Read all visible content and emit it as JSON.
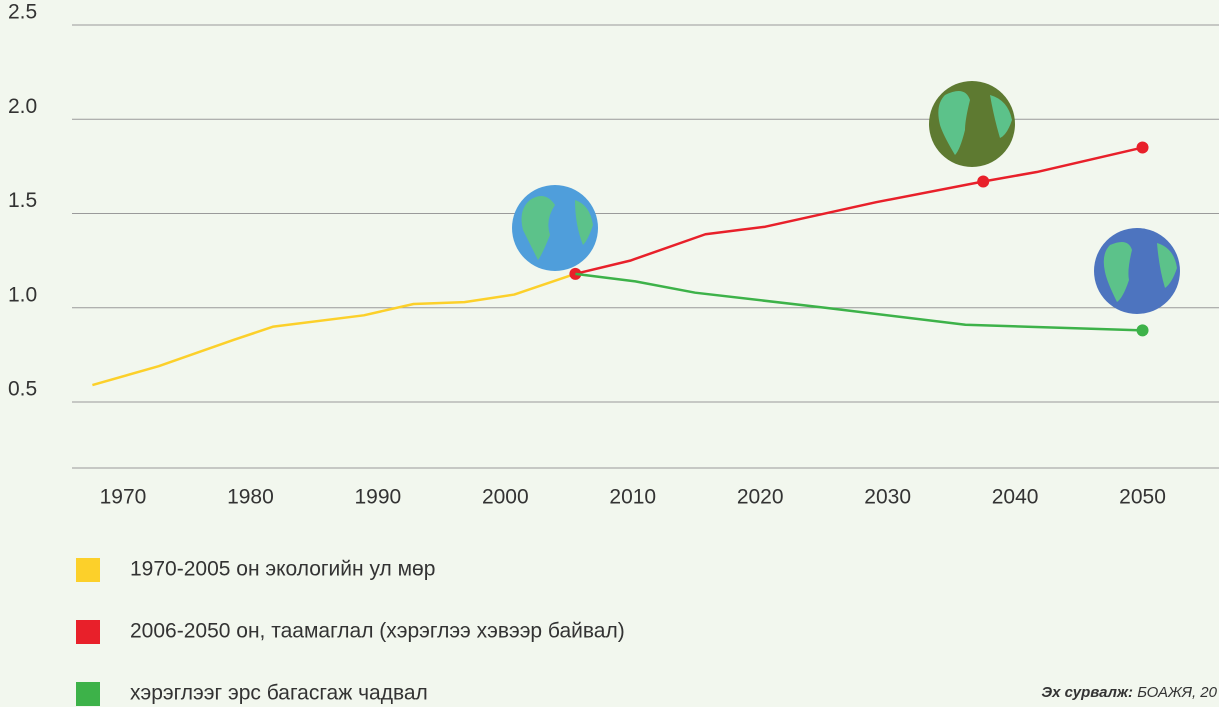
{
  "chart_data": {
    "type": "line",
    "xlim": [
      1966,
      2056
    ],
    "xticks": [
      1970,
      1980,
      1990,
      2000,
      2010,
      2020,
      2030,
      2040,
      2050
    ],
    "ylim": [
      0.15,
      2.5
    ],
    "yticks": [
      0.5,
      {
        "value": 1,
        "label": "1.0"
      },
      1.5,
      {
        "value": 2,
        "label": "2.0"
      },
      2.5
    ],
    "grid": true,
    "series": [
      {
        "name": "1970-2005 он экологийн ул мөр",
        "color": "#fcd02a",
        "x": [
          1967.6,
          1972.8,
          1978.7,
          1981.8,
          1988.9,
          1992.8,
          1996.8,
          2000.7,
          2005.5
        ],
        "values": [
          0.59,
          0.69,
          0.83,
          0.9,
          0.96,
          1.02,
          1.03,
          1.07,
          1.18
        ],
        "markers": []
      },
      {
        "name": "2006-2050 он, таамаглал (хэрэглээ хэвээр байвал)",
        "color": "#e8202a",
        "x": [
          2005.5,
          2009.8,
          2015.7,
          2020.4,
          2029.1,
          2037.5,
          2041.7,
          2050
        ],
        "values": [
          1.18,
          1.25,
          1.39,
          1.43,
          1.56,
          1.67,
          1.72,
          1.85
        ],
        "markers": [
          0,
          5,
          7
        ]
      },
      {
        "name": "хэрэглээг эрс багасгаж чадвал",
        "color": "#3db249",
        "x": [
          2005.5,
          2010.2,
          2014.9,
          2025.1,
          2036.1,
          2050
        ],
        "values": [
          1.18,
          1.14,
          1.08,
          1.0,
          0.91,
          0.88
        ],
        "markers": [
          5
        ]
      }
    ],
    "source_label": "Эх сурвалж:",
    "source_text": "БОАЖЯ, 20"
  }
}
